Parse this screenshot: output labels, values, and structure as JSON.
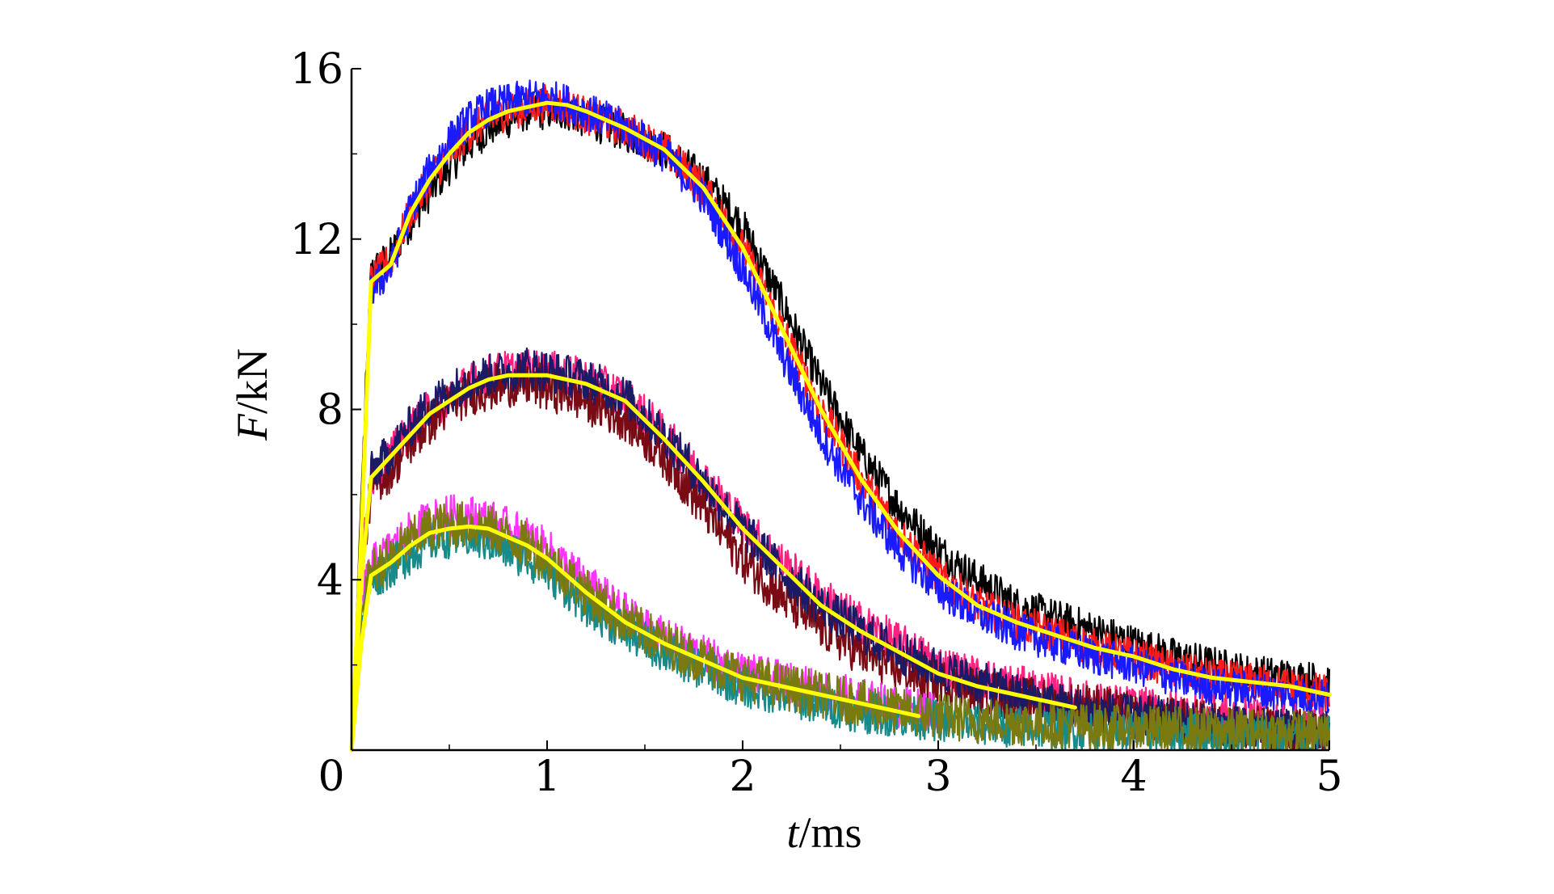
{
  "chart_data": {
    "type": "line",
    "xlabel_italic": "t",
    "xlabel_unit": "/ms",
    "ylabel_italic": "F",
    "ylabel_unit": "/kN",
    "xlim": [
      0,
      5
    ],
    "ylim": [
      0,
      16
    ],
    "x_ticks": [
      "0",
      "1",
      "2",
      "3",
      "4",
      "5"
    ],
    "y_ticks": [
      "0",
      "4",
      "8",
      "12",
      "16"
    ],
    "grid": false,
    "colors": {
      "black": "#000000",
      "red": "#ff1a1a",
      "blue": "#1a1aff",
      "pink": "#ff2080",
      "darkred": "#7a0a14",
      "navy": "#1a1a66",
      "magenta": "#ff33ff",
      "teal": "#178a8a",
      "olive": "#7a7a10",
      "yellow": "#ffff00"
    },
    "groups": [
      {
        "level": "high",
        "mean_series": {
          "color": "#ffff00",
          "x": [
            0.0,
            0.05,
            0.1,
            0.2,
            0.3,
            0.4,
            0.5,
            0.6,
            0.7,
            0.8,
            0.9,
            1.0,
            1.1,
            1.2,
            1.4,
            1.6,
            1.8,
            2.0,
            2.2,
            2.4,
            2.6,
            2.8,
            3.0,
            3.2,
            3.4,
            3.6,
            3.8,
            4.0,
            4.2,
            4.4,
            4.6,
            4.8,
            5.0
          ],
          "y": [
            0,
            5.0,
            11.0,
            11.4,
            12.6,
            13.4,
            14.0,
            14.5,
            14.8,
            15.0,
            15.1,
            15.2,
            15.15,
            15.0,
            14.6,
            14.1,
            13.2,
            11.8,
            9.9,
            8.0,
            6.4,
            5.1,
            4.1,
            3.4,
            3.0,
            2.7,
            2.4,
            2.2,
            1.9,
            1.7,
            1.6,
            1.5,
            1.3
          ]
        },
        "raw_series": [
          {
            "color": "#000000",
            "x": [
              0.0,
              0.05,
              0.1,
              0.2,
              0.3,
              0.4,
              0.5,
              0.6,
              0.7,
              0.8,
              0.9,
              1.0,
              1.1,
              1.2,
              1.4,
              1.6,
              1.8,
              2.0,
              2.2,
              2.4,
              2.6,
              2.8,
              3.0,
              3.2,
              3.4,
              3.6,
              3.8,
              4.0,
              4.2,
              4.4,
              4.6,
              4.8,
              5.0
            ],
            "y": [
              0,
              6.0,
              11.2,
              11.6,
              12.4,
              13.1,
              13.7,
              14.2,
              14.6,
              14.8,
              15.0,
              15.0,
              15.0,
              14.8,
              14.5,
              14.1,
              13.4,
              12.3,
              10.5,
              8.6,
              7.0,
              5.7,
              4.7,
              4.0,
              3.4,
              3.1,
              2.8,
              2.5,
              2.2,
              2.0,
              1.8,
              1.7,
              1.6
            ],
            "amp": 0.45
          },
          {
            "color": "#ff1a1a",
            "x": [
              0.0,
              0.05,
              0.1,
              0.2,
              0.3,
              0.4,
              0.5,
              0.6,
              0.7,
              0.8,
              0.9,
              1.0,
              1.1,
              1.2,
              1.4,
              1.6,
              1.8,
              2.0,
              2.2,
              2.4,
              2.6,
              2.8,
              3.0,
              3.2,
              3.4,
              3.6,
              3.8,
              4.0,
              4.2,
              4.4,
              4.6,
              4.8,
              5.0
            ],
            "y": [
              0,
              5.5,
              11.0,
              11.5,
              12.6,
              13.4,
              14.0,
              14.5,
              14.8,
              15.0,
              15.1,
              15.2,
              15.1,
              14.9,
              14.6,
              14.1,
              13.2,
              11.8,
              9.9,
              8.0,
              6.4,
              5.1,
              4.1,
              3.4,
              3.0,
              2.7,
              2.4,
              2.2,
              1.9,
              1.7,
              1.6,
              1.5,
              1.3
            ],
            "amp": 0.45
          },
          {
            "color": "#1a1aff",
            "x": [
              0.0,
              0.05,
              0.1,
              0.2,
              0.3,
              0.4,
              0.5,
              0.6,
              0.7,
              0.8,
              0.9,
              1.0,
              1.1,
              1.2,
              1.4,
              1.6,
              1.8,
              2.0,
              2.2,
              2.4,
              2.6,
              2.8,
              3.0,
              3.2,
              3.4,
              3.6,
              3.8,
              4.0,
              4.2,
              4.4,
              4.6,
              4.8,
              5.0
            ],
            "y": [
              0,
              5.0,
              10.8,
              11.3,
              12.7,
              13.6,
              14.3,
              14.8,
              15.1,
              15.2,
              15.3,
              15.3,
              15.2,
              15.0,
              14.6,
              14.0,
              13.0,
              11.3,
              9.3,
              7.4,
              5.9,
              4.7,
              3.8,
              3.2,
              2.8,
              2.5,
              2.2,
              2.0,
              1.7,
              1.5,
              1.4,
              1.3,
              1.2
            ],
            "amp": 0.45
          }
        ]
      },
      {
        "level": "medium",
        "mean_series": {
          "color": "#ffff00",
          "x": [
            0.0,
            0.05,
            0.1,
            0.2,
            0.3,
            0.4,
            0.5,
            0.6,
            0.7,
            0.8,
            0.9,
            1.0,
            1.1,
            1.2,
            1.4,
            1.6,
            1.8,
            2.0,
            2.2,
            2.4,
            2.6,
            2.8,
            3.0,
            3.2,
            3.4,
            3.6,
            3.7
          ],
          "y": [
            0,
            4.0,
            6.4,
            6.9,
            7.4,
            7.9,
            8.2,
            8.5,
            8.7,
            8.8,
            8.8,
            8.8,
            8.7,
            8.6,
            8.2,
            7.3,
            6.3,
            5.2,
            4.3,
            3.4,
            2.8,
            2.3,
            1.8,
            1.5,
            1.3,
            1.1,
            1.0
          ]
        },
        "raw_series": [
          {
            "color": "#ff2080",
            "x": [
              0.0,
              0.05,
              0.1,
              0.2,
              0.3,
              0.4,
              0.5,
              0.6,
              0.7,
              0.8,
              0.9,
              1.0,
              1.1,
              1.2,
              1.4,
              1.6,
              1.8,
              2.0,
              2.2,
              2.4,
              2.6,
              2.8,
              3.0,
              3.2,
              3.4,
              3.6,
              3.8,
              4.0,
              4.2,
              4.4,
              4.6,
              4.8,
              5.0
            ],
            "y": [
              0,
              4.2,
              6.4,
              6.9,
              7.5,
              8.0,
              8.3,
              8.6,
              8.8,
              8.9,
              8.9,
              8.9,
              8.8,
              8.7,
              8.3,
              7.4,
              6.4,
              5.3,
              4.4,
              3.6,
              3.0,
              2.5,
              2.0,
              1.7,
              1.5,
              1.3,
              1.1,
              1.0,
              0.9,
              0.8,
              0.7,
              0.6,
              0.5
            ],
            "amp": 0.5
          },
          {
            "color": "#7a0a14",
            "x": [
              0.0,
              0.05,
              0.1,
              0.2,
              0.3,
              0.4,
              0.5,
              0.6,
              0.7,
              0.8,
              0.9,
              1.0,
              1.1,
              1.2,
              1.4,
              1.6,
              1.8,
              2.0,
              2.2,
              2.4,
              2.6,
              2.8,
              3.0,
              3.2,
              3.4,
              3.6,
              3.8,
              4.0,
              4.2,
              4.4,
              4.6,
              4.8,
              5.0
            ],
            "y": [
              0,
              4.0,
              6.2,
              6.6,
              7.2,
              7.7,
              8.1,
              8.4,
              8.5,
              8.6,
              8.6,
              8.5,
              8.4,
              8.2,
              7.8,
              6.9,
              5.7,
              4.5,
              3.6,
              2.9,
              2.3,
              1.9,
              1.6,
              1.4,
              1.2,
              1.1,
              1.0,
              0.8,
              0.7,
              0.6,
              0.5,
              0.45,
              0.4
            ],
            "amp": 0.55
          },
          {
            "color": "#1a1a66",
            "x": [
              0.0,
              0.05,
              0.1,
              0.2,
              0.3,
              0.4,
              0.5,
              0.6,
              0.7,
              0.8,
              0.9,
              1.0,
              1.1,
              1.2,
              1.4,
              1.6,
              1.8,
              2.0,
              2.2,
              2.4,
              2.6,
              2.8,
              3.0,
              3.2,
              3.4,
              3.6,
              3.8,
              4.0,
              4.2,
              4.4,
              4.6,
              4.8,
              5.0
            ],
            "y": [
              0,
              4.1,
              6.5,
              7.0,
              7.6,
              8.1,
              8.4,
              8.7,
              8.8,
              8.9,
              9.0,
              8.9,
              8.8,
              8.7,
              8.3,
              7.4,
              6.3,
              5.2,
              4.2,
              3.4,
              2.8,
              2.3,
              1.9,
              1.6,
              1.3,
              1.1,
              0.9,
              0.8,
              0.7,
              0.6,
              0.5,
              0.45,
              0.4
            ],
            "amp": 0.5
          }
        ]
      },
      {
        "level": "low",
        "mean_series": {
          "color": "#ffff00",
          "x": [
            0.0,
            0.05,
            0.1,
            0.2,
            0.3,
            0.4,
            0.5,
            0.6,
            0.7,
            0.8,
            0.9,
            1.0,
            1.2,
            1.4,
            1.6,
            1.8,
            2.0,
            2.2,
            2.4,
            2.6,
            2.8,
            2.9
          ],
          "y": [
            0,
            2.5,
            4.1,
            4.4,
            4.8,
            5.1,
            5.2,
            5.25,
            5.2,
            5.0,
            4.8,
            4.5,
            3.7,
            3.0,
            2.5,
            2.1,
            1.7,
            1.5,
            1.3,
            1.1,
            0.9,
            0.8
          ]
        },
        "raw_series": [
          {
            "color": "#ff33ff",
            "x": [
              0.0,
              0.05,
              0.1,
              0.2,
              0.3,
              0.4,
              0.5,
              0.6,
              0.7,
              0.8,
              0.9,
              1.0,
              1.2,
              1.4,
              1.6,
              1.8,
              2.0,
              2.2,
              2.4,
              2.6,
              2.8,
              3.0
            ],
            "y": [
              0,
              3.5,
              4.3,
              4.7,
              5.1,
              5.4,
              5.5,
              5.5,
              5.4,
              5.2,
              5.0,
              4.7,
              3.9,
              3.2,
              2.6,
              2.2,
              1.8,
              1.6,
              1.4,
              1.2,
              1.0,
              0.9
            ],
            "amp": 0.5
          },
          {
            "color": "#178a8a",
            "x": [
              0.0,
              0.05,
              0.1,
              0.2,
              0.3,
              0.4,
              0.5,
              0.6,
              0.7,
              0.8,
              0.9,
              1.0,
              1.2,
              1.4,
              1.6,
              1.8,
              2.0,
              2.2,
              2.4,
              2.6,
              2.8,
              3.0,
              3.2,
              3.4,
              3.6,
              3.8,
              4.0,
              4.2,
              4.4,
              4.6,
              4.8,
              5.0
            ],
            "y": [
              0,
              3.0,
              4.0,
              4.3,
              4.6,
              4.9,
              5.0,
              5.0,
              4.9,
              4.7,
              4.5,
              4.2,
              3.4,
              2.8,
              2.3,
              1.9,
              1.5,
              1.3,
              1.1,
              0.9,
              0.8,
              0.7,
              0.6,
              0.55,
              0.5,
              0.45,
              0.4,
              0.4,
              0.35,
              0.35,
              0.3,
              0.3
            ],
            "amp": 0.5
          },
          {
            "color": "#7a7a10",
            "x": [
              0.0,
              0.05,
              0.1,
              0.2,
              0.3,
              0.4,
              0.5,
              0.6,
              0.7,
              0.8,
              0.9,
              1.0,
              1.2,
              1.4,
              1.6,
              1.8,
              2.0,
              2.2,
              2.4,
              2.6,
              2.8,
              3.0,
              3.2,
              3.4,
              3.6,
              3.8,
              4.0,
              4.2,
              4.4,
              4.6,
              4.8,
              5.0
            ],
            "y": [
              0,
              3.2,
              4.2,
              4.5,
              4.9,
              5.2,
              5.3,
              5.3,
              5.2,
              5.0,
              4.8,
              4.5,
              3.7,
              3.0,
              2.5,
              2.1,
              1.7,
              1.5,
              1.3,
              1.1,
              0.9,
              0.8,
              0.7,
              0.65,
              0.6,
              0.55,
              0.5,
              0.5,
              0.45,
              0.45,
              0.4,
              0.4
            ],
            "amp": 0.55
          }
        ]
      }
    ]
  }
}
